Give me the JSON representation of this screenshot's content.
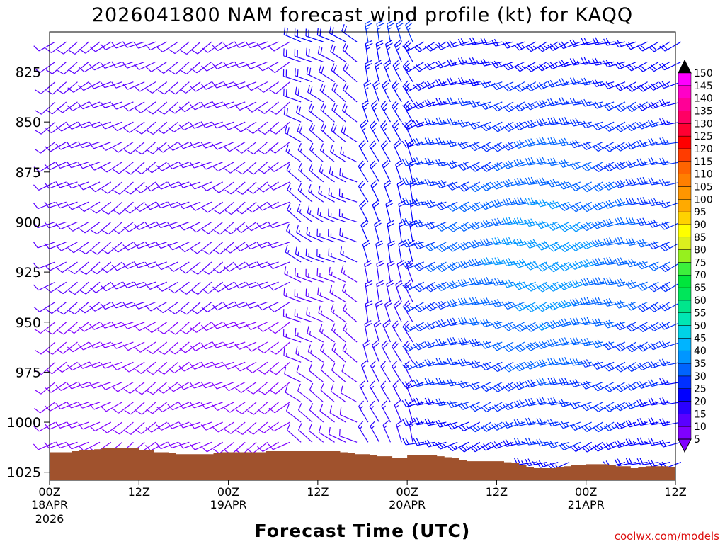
{
  "chart_data": {
    "type": "wind_barb_time_height",
    "title": "2026041800 NAM forecast wind profile (kt) for KAQQ",
    "xlabel": "Forecast Time (UTC)",
    "ylabel": "",
    "credit": "coolwx.com/models",
    "x_range_hours": [
      0,
      84
    ],
    "y_range_hPa": [
      805,
      1029
    ],
    "y_ticks": [
      825,
      850,
      875,
      900,
      925,
      950,
      975,
      1000,
      1025
    ],
    "x_ticks": [
      {
        "hour": 0,
        "label": "00Z",
        "date": "18APR",
        "year": "2026"
      },
      {
        "hour": 12,
        "label": "12Z",
        "date": "",
        "year": ""
      },
      {
        "hour": 24,
        "label": "00Z",
        "date": "19APR",
        "year": ""
      },
      {
        "hour": 36,
        "label": "12Z",
        "date": "",
        "year": ""
      },
      {
        "hour": 48,
        "label": "00Z",
        "date": "20APR",
        "year": ""
      },
      {
        "hour": 60,
        "label": "12Z",
        "date": "",
        "year": ""
      },
      {
        "hour": 72,
        "label": "00Z",
        "date": "21APR",
        "year": ""
      },
      {
        "hour": 84,
        "label": "12Z",
        "date": "",
        "year": ""
      }
    ],
    "colorbar": {
      "units": "kt",
      "levels": [
        5,
        10,
        15,
        20,
        25,
        30,
        35,
        40,
        45,
        50,
        55,
        60,
        65,
        70,
        75,
        80,
        85,
        90,
        95,
        100,
        105,
        110,
        115,
        120,
        125,
        130,
        135,
        140,
        145,
        150
      ],
      "colors": [
        "#8000ff",
        "#5a00ff",
        "#2a00ff",
        "#0000ff",
        "#0030ff",
        "#0064ff",
        "#0096ff",
        "#00b4ff",
        "#00d2e6",
        "#00e6b4",
        "#00e68c",
        "#00e65a",
        "#00e63c",
        "#3cf03c",
        "#96f01e",
        "#dcf01e",
        "#ffff00",
        "#ffd200",
        "#ffaa00",
        "#ff9600",
        "#ff7f00",
        "#ff6400",
        "#ff3c00",
        "#ff0000",
        "#ff0032",
        "#ff0064",
        "#ff0096",
        "#ff00c8",
        "#ff00ff",
        "#000000"
      ]
    },
    "surface_pressure": {
      "hours": [
        0,
        1,
        2,
        3,
        4,
        5,
        6,
        7,
        8,
        9,
        10,
        11,
        12,
        13,
        14,
        15,
        16,
        17,
        18,
        19,
        20,
        21,
        22,
        23,
        24,
        25,
        26,
        27,
        28,
        29,
        30,
        31,
        32,
        33,
        34,
        35,
        36,
        37,
        38,
        39,
        40,
        41,
        42,
        43,
        44,
        45,
        46,
        47,
        48,
        49,
        50,
        51,
        52,
        53,
        54,
        55,
        56,
        57,
        58,
        59,
        60,
        61,
        62,
        63,
        64,
        65,
        66,
        67,
        68,
        69,
        70,
        71,
        72,
        73,
        74,
        75,
        76,
        77,
        78,
        79,
        80,
        81,
        82,
        83,
        84
      ],
      "pres": [
        1015,
        1015,
        1015,
        1014.5,
        1014,
        1014,
        1013.5,
        1013,
        1013,
        1013,
        1013,
        1013,
        1014,
        1014,
        1015,
        1015,
        1015.5,
        1016,
        1016,
        1016,
        1016,
        1016,
        1015.5,
        1015,
        1015,
        1015,
        1015,
        1015,
        1015,
        1014.5,
        1014.5,
        1014.5,
        1014.5,
        1014.5,
        1014.5,
        1014.5,
        1014.5,
        1014.5,
        1014.5,
        1015,
        1015.5,
        1016,
        1016,
        1016.5,
        1017,
        1017,
        1018,
        1018,
        1016.5,
        1016.5,
        1016.5,
        1016.5,
        1017,
        1017.5,
        1018,
        1019,
        1019.5,
        1019.5,
        1019.5,
        1019.5,
        1019.5,
        1020,
        1020.5,
        1021.5,
        1022.5,
        1023,
        1023,
        1023,
        1022.5,
        1022,
        1021.5,
        1021.5,
        1021,
        1021,
        1021,
        1021.5,
        1022,
        1022,
        1023,
        1022.5,
        1022,
        1022,
        1022,
        1022.5,
        1023
      ]
    },
    "wind_barbs": {
      "levels_hPa": [
        810,
        820,
        830,
        840,
        850,
        860,
        870,
        880,
        890,
        900,
        910,
        920,
        930,
        940,
        950,
        960,
        970,
        980,
        990,
        1000,
        1010,
        1020
      ],
      "hours_step": 1.5,
      "hours_count": 57,
      "note": "speed (kt) and direction (deg, from) sampled at 1.5-h intervals; derived from the depicted barbs",
      "regimes": [
        {
          "hours": [
            0,
            33
          ],
          "dir_deg": 240,
          "speed_kt": [
            8,
            12
          ]
        },
        {
          "hours": [
            33,
            42
          ],
          "dir_deg": 300,
          "speed_kt": [
            10,
            20
          ]
        },
        {
          "hours": [
            42,
            50
          ],
          "dir_deg": 340,
          "speed_kt": [
            15,
            25
          ]
        },
        {
          "hours": [
            50,
            84
          ],
          "dir_deg": 250,
          "speed_kt": [
            20,
            40
          ]
        }
      ]
    }
  }
}
